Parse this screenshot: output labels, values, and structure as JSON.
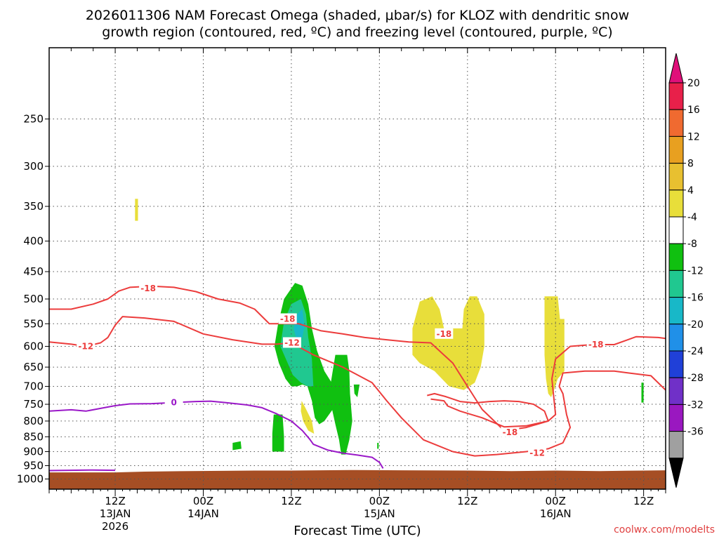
{
  "chart_data": {
    "type": "time-height cross section",
    "title_line1": "2026011306 NAM Forecast Omega (shaded, μbar/s) for KLOZ with dendritic snow",
    "title_line2": "growth region (contoured, red, ºC) and freezing level (contoured, purple, ºC)",
    "xlabel": "Forecast Time (UTC)",
    "credit": "coolwx.com/modelts",
    "x_range_hours": [
      -3,
      81
    ],
    "y_range_mb": [
      190,
      1040
    ],
    "y_scale": "log",
    "grid": true,
    "y_ticks": [
      250,
      300,
      350,
      400,
      450,
      500,
      550,
      600,
      650,
      700,
      750,
      800,
      850,
      900,
      950,
      1000
    ],
    "x_ticks": [
      {
        "hour": 6,
        "lines": [
          "12Z",
          "13JAN",
          "2026"
        ]
      },
      {
        "hour": 18,
        "lines": [
          "00Z",
          "14JAN"
        ]
      },
      {
        "hour": 30,
        "lines": [
          "12Z"
        ]
      },
      {
        "hour": 42,
        "lines": [
          "00Z",
          "15JAN"
        ]
      },
      {
        "hour": 54,
        "lines": [
          "12Z"
        ]
      },
      {
        "hour": 66,
        "lines": [
          "00Z",
          "16JAN"
        ]
      },
      {
        "hour": 78,
        "lines": [
          "12Z"
        ]
      }
    ],
    "colorbar": {
      "labels": [
        "20",
        "16",
        "12",
        "8",
        "4",
        "-4",
        "-8",
        "-12",
        "-16",
        "-20",
        "-24",
        "-28",
        "-32",
        "-36"
      ],
      "colors": [
        "#e8204a",
        "#f06a30",
        "#e8a020",
        "#e8c030",
        "#e8de3a",
        "#ffffff",
        "#10c010",
        "#20c890",
        "#18b8c8",
        "#2090e8",
        "#2040d8",
        "#7030c8",
        "#9a18c0",
        "#a0a0a0"
      ],
      "top_arrow_color": "#e0107a",
      "bottom_arrow_color": "#000000"
    },
    "omega_regions": [
      {
        "name": "upward-motion-main-1",
        "value": -6,
        "color": "#10c010",
        "points": [
          [
            27.7,
            600
          ],
          [
            28.2,
            550
          ],
          [
            29.0,
            500
          ],
          [
            30.5,
            470
          ],
          [
            31.5,
            475
          ],
          [
            32.3,
            510
          ],
          [
            32.8,
            560
          ],
          [
            33.5,
            610
          ],
          [
            34.5,
            660
          ],
          [
            35.8,
            700
          ],
          [
            35.8,
            760
          ],
          [
            34.5,
            800
          ],
          [
            33.8,
            810
          ],
          [
            33.2,
            790
          ],
          [
            32.8,
            740
          ],
          [
            32.2,
            700
          ],
          [
            31.5,
            695
          ],
          [
            30.8,
            700
          ],
          [
            30.0,
            700
          ],
          [
            29.2,
            680
          ],
          [
            28.3,
            640
          ]
        ]
      },
      {
        "name": "upward-motion-main-2",
        "value": -6,
        "color": "#10c010",
        "points": [
          [
            36.0,
            620
          ],
          [
            37.6,
            620
          ],
          [
            37.9,
            660
          ],
          [
            38.0,
            720
          ],
          [
            38.3,
            800
          ],
          [
            37.9,
            860
          ],
          [
            37.4,
            910
          ],
          [
            36.8,
            910
          ],
          [
            36.5,
            860
          ],
          [
            36.0,
            810
          ],
          [
            35.5,
            760
          ],
          [
            35.3,
            700
          ]
        ]
      },
      {
        "name": "upward-motion-main-3",
        "value": -6,
        "color": "#10c010",
        "points": [
          [
            38.5,
            695
          ],
          [
            39.3,
            695
          ],
          [
            39.0,
            730
          ],
          [
            38.6,
            720
          ]
        ]
      },
      {
        "name": "upward-motion-core",
        "value": -10,
        "color": "#20c890",
        "points": [
          [
            28.5,
            600
          ],
          [
            29.0,
            545
          ],
          [
            30.0,
            510
          ],
          [
            31.3,
            500
          ],
          [
            32.0,
            530
          ],
          [
            32.3,
            580
          ],
          [
            32.8,
            630
          ],
          [
            33.0,
            700
          ],
          [
            32.2,
            700
          ],
          [
            31.3,
            690
          ],
          [
            30.2,
            670
          ],
          [
            29.5,
            640
          ]
        ]
      },
      {
        "name": "upward-motion-peak",
        "value": -14,
        "color": "#18b8c8",
        "points": [
          [
            30.3,
            560
          ],
          [
            30.8,
            530
          ],
          [
            31.5,
            520
          ],
          [
            31.8,
            555
          ],
          [
            31.5,
            580
          ],
          [
            30.8,
            590
          ]
        ]
      },
      {
        "name": "upward-motion-low-1",
        "value": -6,
        "color": "#10c010",
        "points": [
          [
            27.4,
            840
          ],
          [
            27.6,
            780
          ],
          [
            28.8,
            780
          ],
          [
            29.0,
            850
          ],
          [
            29.0,
            900
          ],
          [
            27.4,
            900
          ]
        ]
      },
      {
        "name": "upward-motion-low-2",
        "value": -6,
        "color": "#10c010",
        "points": [
          [
            22.0,
            870
          ],
          [
            23.1,
            865
          ],
          [
            23.2,
            890
          ],
          [
            22.0,
            895
          ]
        ]
      },
      {
        "name": "upward-motion-low-3",
        "value": -6,
        "color": "#10c010",
        "points": [
          [
            41.7,
            870
          ],
          [
            41.9,
            870
          ],
          [
            41.9,
            890
          ],
          [
            41.7,
            890
          ]
        ]
      },
      {
        "name": "upward-motion-east",
        "value": -6,
        "color": "#10c010",
        "points": [
          [
            77.7,
            690
          ],
          [
            78.0,
            690
          ],
          [
            78.0,
            745
          ],
          [
            77.7,
            745
          ]
        ]
      },
      {
        "name": "downward-motion-west",
        "value": 5,
        "color": "#e8de3a",
        "points": [
          [
            8.7,
            340
          ],
          [
            9.1,
            340
          ],
          [
            9.1,
            370
          ],
          [
            8.7,
            370
          ]
        ]
      },
      {
        "name": "downward-motion-center",
        "value": 5,
        "color": "#e8de3a",
        "points": [
          [
            46.5,
            560
          ],
          [
            47.5,
            505
          ],
          [
            49.2,
            495
          ],
          [
            50.2,
            520
          ],
          [
            50.8,
            560
          ],
          [
            52.2,
            560
          ],
          [
            53.3,
            560
          ],
          [
            53.5,
            520
          ],
          [
            54.3,
            495
          ],
          [
            55.3,
            495
          ],
          [
            56.3,
            530
          ],
          [
            56.3,
            600
          ],
          [
            55.8,
            650
          ],
          [
            55.0,
            690
          ],
          [
            53.5,
            710
          ],
          [
            51.5,
            700
          ],
          [
            49.5,
            660
          ],
          [
            47.5,
            640
          ],
          [
            46.5,
            620
          ]
        ]
      },
      {
        "name": "downward-motion-east",
        "value": 5,
        "color": "#e8de3a",
        "points": [
          [
            64.5,
            495
          ],
          [
            66.3,
            495
          ],
          [
            66.6,
            540
          ],
          [
            67.2,
            540
          ],
          [
            67.2,
            660
          ],
          [
            66.3,
            680
          ],
          [
            65.8,
            710
          ],
          [
            65.4,
            730
          ],
          [
            65.0,
            720
          ],
          [
            64.7,
            680
          ],
          [
            64.5,
            620
          ]
        ]
      },
      {
        "name": "downward-motion-low",
        "value": 5,
        "color": "#e8de3a",
        "points": [
          [
            31.4,
            740
          ],
          [
            31.9,
            760
          ],
          [
            32.8,
            800
          ],
          [
            33.1,
            840
          ],
          [
            32.3,
            830
          ],
          [
            31.6,
            800
          ],
          [
            31.3,
            770
          ]
        ]
      }
    ],
    "ground": {
      "color": "#a64e24",
      "points": [
        [
          -3,
          975
        ],
        [
          6,
          975
        ],
        [
          10,
          972
        ],
        [
          16,
          970
        ],
        [
          25,
          968
        ],
        [
          30,
          968
        ],
        [
          38,
          966
        ],
        [
          45,
          967
        ],
        [
          54,
          968
        ],
        [
          60,
          970
        ],
        [
          66,
          968
        ],
        [
          72,
          970
        ],
        [
          78,
          968
        ],
        [
          81,
          967
        ]
      ]
    },
    "contours": [
      {
        "name": "temp-minus-18",
        "label": "-18",
        "color": "#ec3c3c",
        "label_positions": [
          [
            10.5,
            480
          ],
          [
            29.5,
            540
          ],
          [
            50.8,
            572
          ],
          [
            59.8,
            835
          ],
          [
            71.5,
            596
          ]
        ],
        "points": [
          [
            -3,
            520
          ],
          [
            0,
            520
          ],
          [
            3,
            510
          ],
          [
            5,
            500
          ],
          [
            6.5,
            485
          ],
          [
            8,
            478
          ],
          [
            11,
            476
          ],
          [
            14,
            478
          ],
          [
            17,
            486
          ],
          [
            20,
            500
          ],
          [
            23,
            508
          ],
          [
            25,
            520
          ],
          [
            27,
            550
          ],
          [
            29,
            550
          ],
          [
            31,
            550
          ],
          [
            34,
            565
          ],
          [
            37,
            572
          ],
          [
            40,
            580
          ],
          [
            43,
            585
          ],
          [
            46,
            590
          ],
          [
            49,
            592
          ],
          [
            52,
            640
          ],
          [
            54,
            700
          ],
          [
            56,
            765
          ],
          [
            59,
            830
          ],
          [
            62,
            820
          ],
          [
            65,
            800
          ],
          [
            66,
            780
          ],
          [
            65.5,
            680
          ],
          [
            66,
            630
          ],
          [
            68,
            600
          ],
          [
            71,
            596
          ],
          [
            74,
            596
          ],
          [
            77,
            578
          ],
          [
            80,
            580
          ],
          [
            81,
            582
          ]
        ]
      },
      {
        "name": "temp-minus-12",
        "label": "-12",
        "color": "#ec3c3c",
        "label_positions": [
          [
            2,
            600
          ],
          [
            30.1,
            592
          ],
          [
            63.5,
            905
          ]
        ],
        "points": [
          [
            -3,
            590
          ],
          [
            0,
            595
          ],
          [
            2,
            600
          ],
          [
            4,
            592
          ],
          [
            5,
            580
          ],
          [
            6,
            553
          ],
          [
            7,
            535
          ],
          [
            10,
            538
          ],
          [
            14,
            545
          ],
          [
            18,
            572
          ],
          [
            22,
            585
          ],
          [
            26,
            595
          ],
          [
            28,
            595
          ],
          [
            30,
            592
          ],
          [
            33,
            620
          ],
          [
            37,
            650
          ],
          [
            41,
            690
          ],
          [
            43,
            740
          ],
          [
            45,
            790
          ],
          [
            48,
            860
          ],
          [
            52,
            900
          ],
          [
            55,
            915
          ],
          [
            58,
            910
          ],
          [
            62,
            900
          ],
          [
            65,
            890
          ],
          [
            67,
            870
          ],
          [
            68,
            820
          ],
          [
            67.5,
            780
          ],
          [
            67,
            720
          ],
          [
            66.5,
            700
          ],
          [
            67,
            665
          ],
          [
            70,
            660
          ],
          [
            74,
            660
          ],
          [
            76,
            665
          ],
          [
            79,
            672
          ],
          [
            81,
            710
          ]
        ]
      },
      {
        "name": "temp-minus-18-loop",
        "label": "",
        "color": "#ec3c3c",
        "label_positions": [],
        "points": [
          [
            49,
            735
          ],
          [
            50.8,
            740
          ],
          [
            51.3,
            755
          ],
          [
            53,
            770
          ],
          [
            56,
            790
          ],
          [
            59,
            818
          ],
          [
            62,
            815
          ],
          [
            65,
            800
          ],
          [
            64.5,
            770
          ],
          [
            63,
            750
          ],
          [
            61,
            742
          ],
          [
            59,
            740
          ],
          [
            57,
            742
          ],
          [
            55,
            746
          ],
          [
            53,
            742
          ],
          [
            51,
            728
          ],
          [
            49.5,
            720
          ],
          [
            48.5,
            725
          ]
        ]
      },
      {
        "name": "freezing-level",
        "label": "0",
        "color": "#9a18c8",
        "label_positions": [
          [
            14,
            745
          ]
        ],
        "points": [
          [
            -3,
            770
          ],
          [
            0,
            766
          ],
          [
            2,
            770
          ],
          [
            4,
            762
          ],
          [
            6,
            754
          ],
          [
            8,
            749
          ],
          [
            11,
            748
          ],
          [
            14,
            745
          ],
          [
            17,
            742
          ],
          [
            19,
            741
          ],
          [
            21,
            745
          ],
          [
            24,
            752
          ],
          [
            26,
            760
          ],
          [
            28,
            778
          ],
          [
            30,
            800
          ],
          [
            31.5,
            830
          ],
          [
            32.5,
            858
          ],
          [
            33,
            875
          ],
          [
            35,
            895
          ],
          [
            37,
            905
          ],
          [
            39,
            912
          ],
          [
            41,
            920
          ],
          [
            42,
            938
          ],
          [
            42.5,
            960
          ]
        ]
      },
      {
        "name": "freezing-level-surface",
        "label": "",
        "color": "#9a18c8",
        "label_positions": [],
        "points": [
          [
            -3,
            968
          ],
          [
            3,
            966
          ],
          [
            6,
            967
          ]
        ]
      }
    ]
  }
}
